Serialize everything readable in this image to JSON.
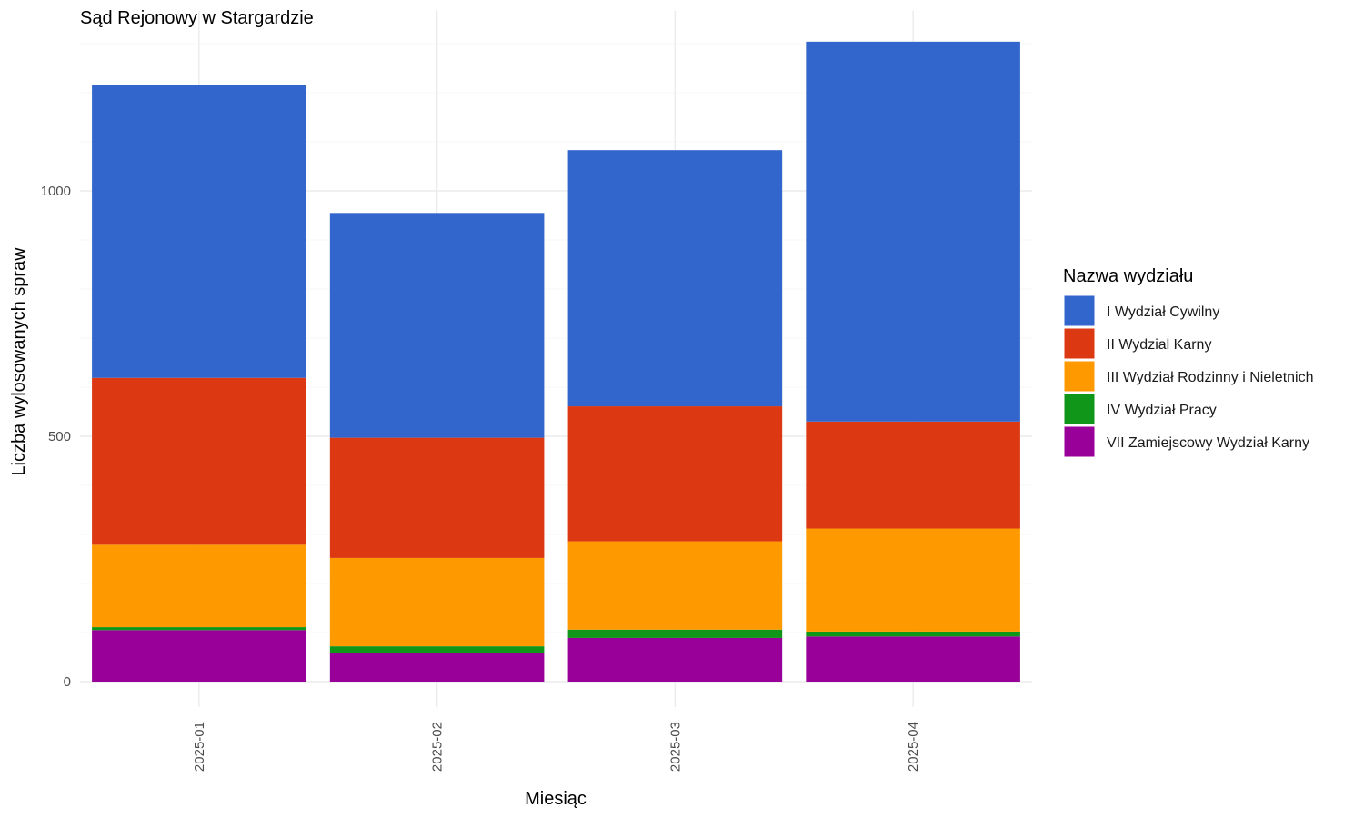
{
  "chart_data": {
    "type": "bar",
    "stacked": true,
    "title": "Sąd Rejonowy w Stargardzie",
    "xlabel": "Miesiąc",
    "ylabel": "Liczba wylosowanych spraw",
    "categories": [
      "2025-01",
      "2025-02",
      "2025-03",
      "2025-04"
    ],
    "ylim": [
      0,
      1360
    ],
    "yticks": [
      0,
      500,
      1000
    ],
    "grid": true,
    "legend": {
      "title": "Nazwa wydziału",
      "position": "right"
    },
    "series": [
      {
        "name": "VII Zamiejscowy Wydział Karny",
        "color": "#990099",
        "values": [
          105,
          58,
          89,
          92
        ]
      },
      {
        "name": "IV Wydział Pracy",
        "color": "#109618",
        "values": [
          6,
          14,
          17,
          10
        ]
      },
      {
        "name": "III Wydział Rodzinny i Nieletnich",
        "color": "#FF9900",
        "values": [
          168,
          180,
          180,
          210
        ]
      },
      {
        "name": "II Wydzial Karny",
        "color": "#DC3912",
        "values": [
          340,
          245,
          275,
          218
        ]
      },
      {
        "name": "I Wydział Cywilny",
        "color": "#3366CC",
        "values": [
          597,
          458,
          522,
          774
        ]
      }
    ]
  }
}
